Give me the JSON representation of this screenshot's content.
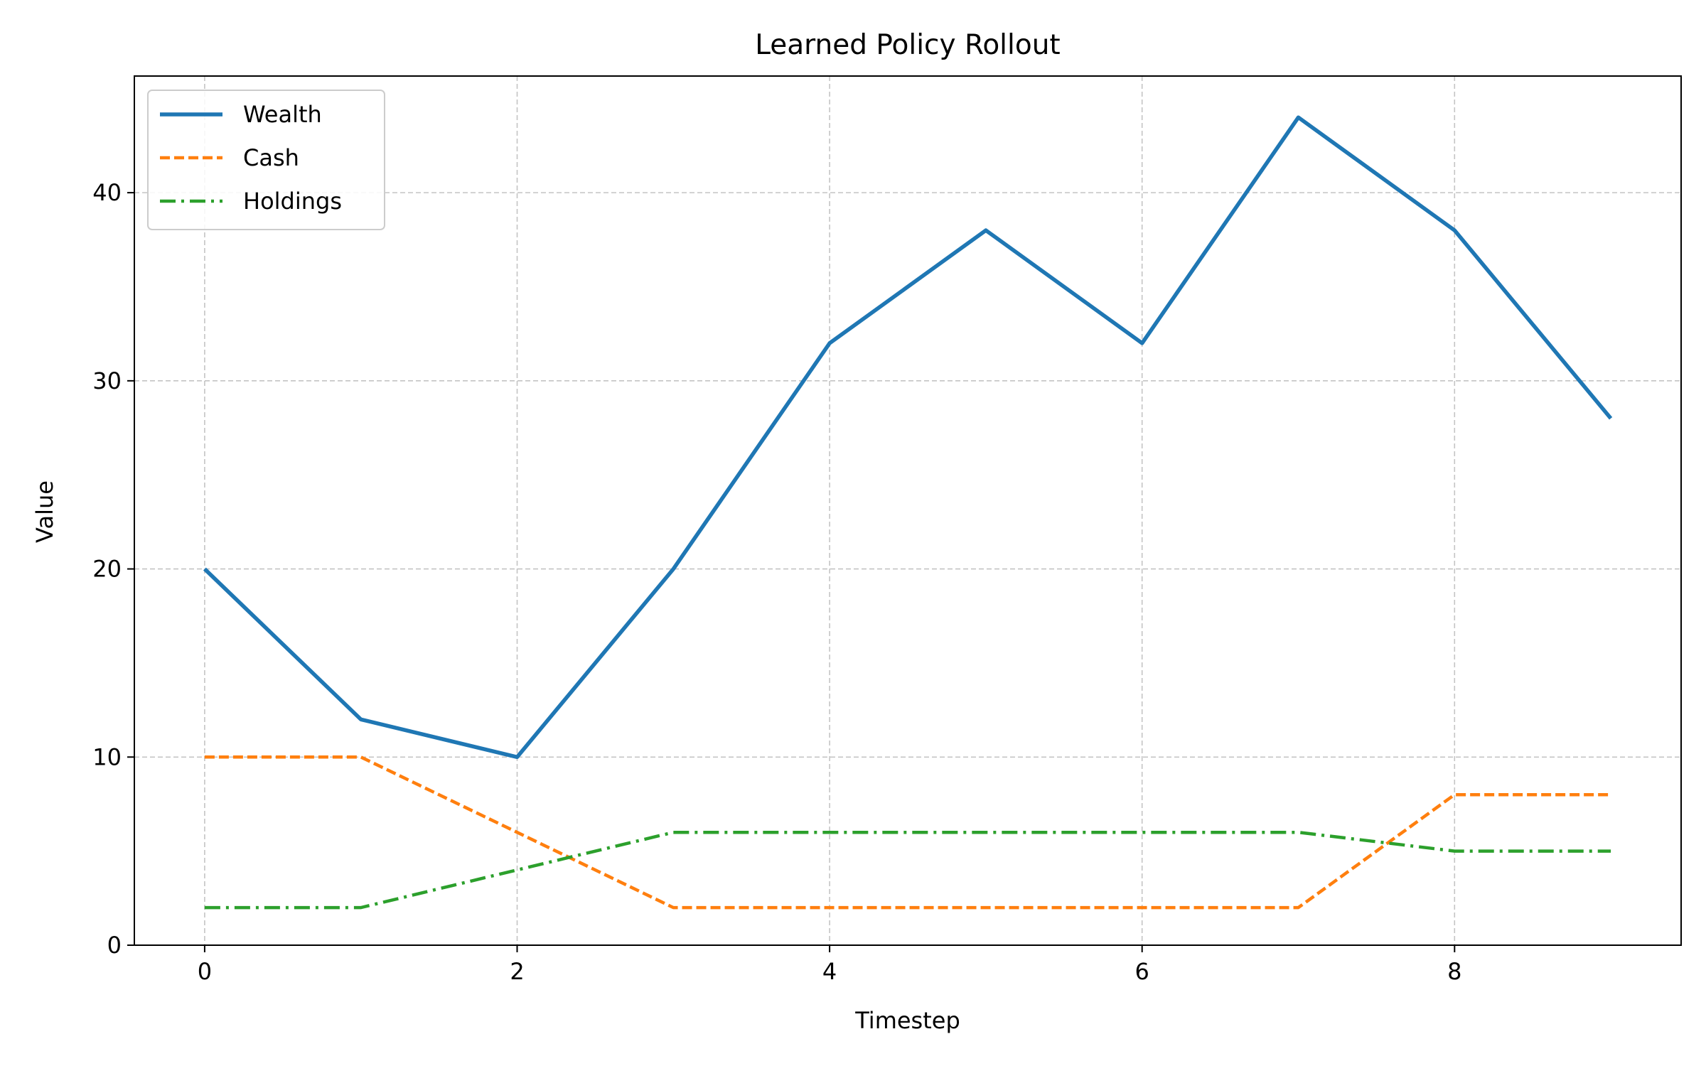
{
  "chart_data": {
    "type": "line",
    "title": "Learned Policy Rollout",
    "xlabel": "Timestep",
    "ylabel": "Value",
    "x": [
      0,
      1,
      2,
      3,
      4,
      5,
      6,
      7,
      8,
      9
    ],
    "xlim": [
      -0.45,
      9.45
    ],
    "ylim": [
      0,
      46.2
    ],
    "xticks": [
      0,
      2,
      4,
      6,
      8
    ],
    "yticks": [
      0,
      10,
      20,
      30,
      40
    ],
    "grid": true,
    "legend_position": "top-left",
    "series": [
      {
        "name": "Wealth",
        "values": [
          20,
          12,
          10,
          20,
          32,
          38,
          32,
          44,
          38,
          28
        ],
        "color": "#1f77b4",
        "style": "solid"
      },
      {
        "name": "Cash",
        "values": [
          10,
          10,
          6,
          2,
          2,
          2,
          2,
          2,
          8,
          8
        ],
        "color": "#ff7f0e",
        "style": "dashed"
      },
      {
        "name": "Holdings",
        "values": [
          2,
          2,
          4,
          6,
          6,
          6,
          6,
          6,
          5,
          5
        ],
        "color": "#2ca02c",
        "style": "dashdot"
      }
    ]
  }
}
